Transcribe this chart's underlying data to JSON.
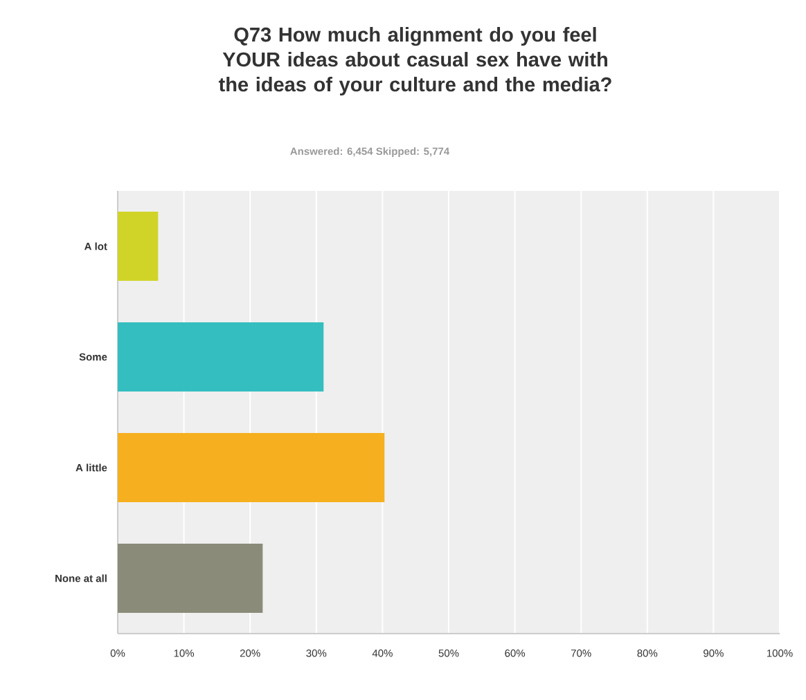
{
  "chart_data": {
    "type": "bar",
    "orientation": "horizontal",
    "title": "Q73 How much alignment do you feel YOUR ideas about casual sex have with the ideas of your culture and the media?",
    "subtitle": "Answered: 6,454    Skipped: 5,774",
    "categories": [
      "A lot",
      "Some",
      "A little",
      "None at all"
    ],
    "values": [
      6.1,
      31.1,
      40.3,
      21.9
    ],
    "colors": [
      "#d0d428",
      "#34bec0",
      "#f6b01f",
      "#8b8b7a"
    ],
    "xlim": [
      0,
      100
    ],
    "xticks": [
      {
        "value": 0,
        "label": "0%"
      },
      {
        "value": 10,
        "label": "10%"
      },
      {
        "value": 20,
        "label": "20%"
      },
      {
        "value": 30,
        "label": "30%"
      },
      {
        "value": 40,
        "label": "40%"
      },
      {
        "value": 50,
        "label": "50%"
      },
      {
        "value": 60,
        "label": "60%"
      },
      {
        "value": 70,
        "label": "70%"
      },
      {
        "value": 80,
        "label": "80%"
      },
      {
        "value": 90,
        "label": "90%"
      },
      {
        "value": 100,
        "label": "100%"
      }
    ],
    "grid": "x"
  }
}
